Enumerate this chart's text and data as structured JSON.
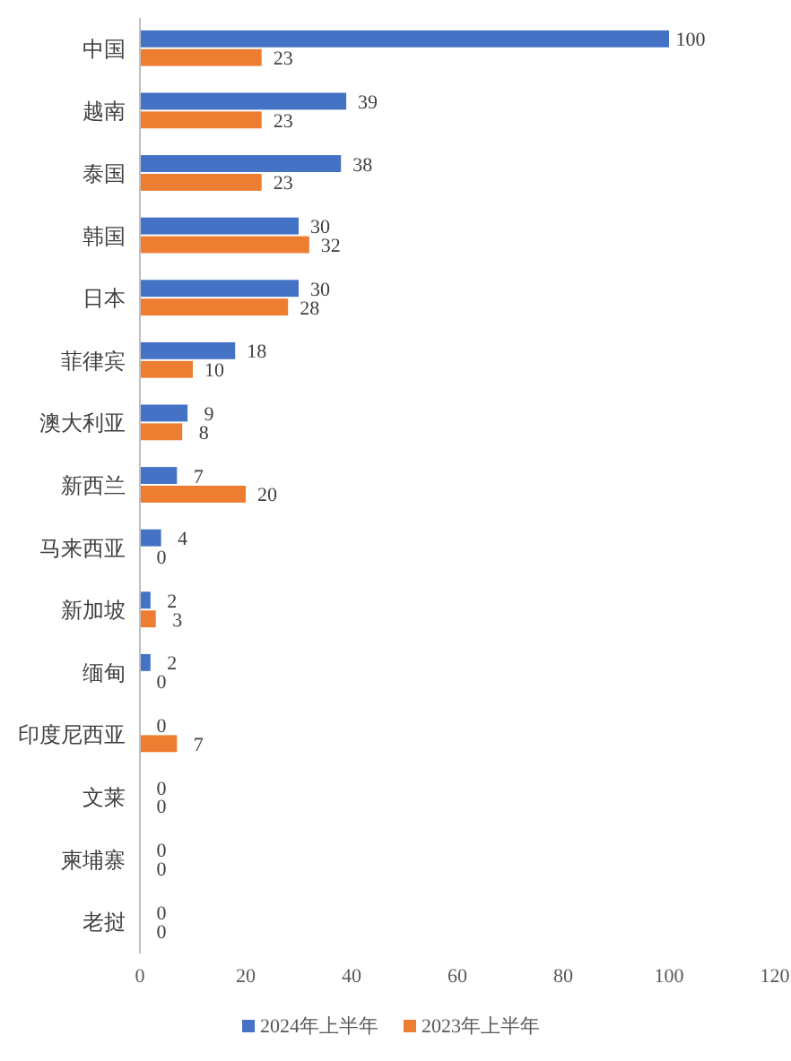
{
  "chart_data": {
    "type": "bar",
    "orientation": "horizontal",
    "categories": [
      "中国",
      "越南",
      "泰国",
      "韩国",
      "日本",
      "菲律宾",
      "澳大利亚",
      "新西兰",
      "马来西亚",
      "新加坡",
      "缅甸",
      "印度尼西亚",
      "文莱",
      "柬埔寨",
      "老挝"
    ],
    "series": [
      {
        "name": "2024年上半年",
        "color": "#4472c4",
        "values": [
          100,
          39,
          38,
          30,
          30,
          18,
          9,
          7,
          4,
          2,
          2,
          0,
          0,
          0,
          0
        ]
      },
      {
        "name": "2023年上半年",
        "color": "#ed7d31",
        "values": [
          23,
          23,
          23,
          32,
          28,
          10,
          8,
          20,
          0,
          3,
          0,
          7,
          0,
          0,
          0
        ]
      }
    ],
    "xlim": [
      0,
      120
    ],
    "xticks": [
      0,
      20,
      40,
      60,
      80,
      100,
      120
    ],
    "data_labels": true,
    "legend": "bottom"
  }
}
